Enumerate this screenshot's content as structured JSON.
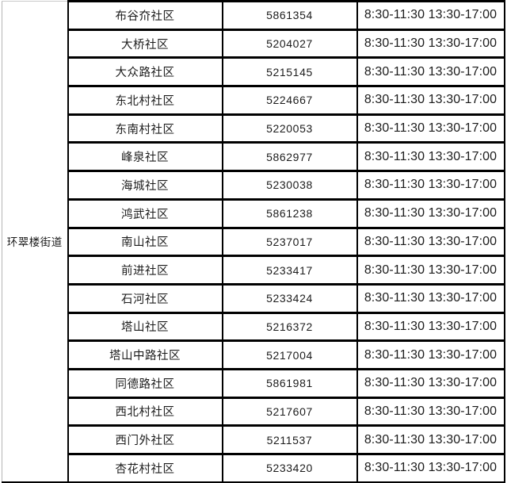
{
  "page": {
    "background_color": "#ffffff",
    "border_color": "#000000",
    "outer_light_border_color": "#b5b5b5",
    "text_color": "#1c1c1c"
  },
  "table": {
    "street_label": "环翠楼街道",
    "rows": [
      {
        "community": "布谷夼社区",
        "phone": "5861354",
        "hours": "8:30-11:30 13:30-17:00"
      },
      {
        "community": "大桥社区",
        "phone": "5204027",
        "hours": "8:30-11:30 13:30-17:00"
      },
      {
        "community": "大众路社区",
        "phone": "5215145",
        "hours": "8:30-11:30 13:30-17:00"
      },
      {
        "community": "东北村社区",
        "phone": "5224667",
        "hours": "8:30-11:30 13:30-17:00"
      },
      {
        "community": "东南村社区",
        "phone": "5220053",
        "hours": "8:30-11:30 13:30-17:00"
      },
      {
        "community": "峰泉社区",
        "phone": "5862977",
        "hours": "8:30-11:30 13:30-17:00"
      },
      {
        "community": "海城社区",
        "phone": "5230038",
        "hours": "8:30-11:30 13:30-17:00"
      },
      {
        "community": "鸿武社区",
        "phone": "5861238",
        "hours": "8:30-11:30 13:30-17:00"
      },
      {
        "community": "南山社区",
        "phone": "5237017",
        "hours": "8:30-11:30 13:30-17:00"
      },
      {
        "community": "前进社区",
        "phone": "5233417",
        "hours": "8:30-11:30 13:30-17:00"
      },
      {
        "community": "石河社区",
        "phone": "5233424",
        "hours": "8:30-11:30 13:30-17:00"
      },
      {
        "community": "塔山社区",
        "phone": "5216372",
        "hours": "8:30-11:30 13:30-17:00"
      },
      {
        "community": "塔山中路社区",
        "phone": "5217004",
        "hours": "8:30-11:30 13:30-17:00"
      },
      {
        "community": "同德路社区",
        "phone": "5861981",
        "hours": "8:30-11:30 13:30-17:00"
      },
      {
        "community": "西北村社区",
        "phone": "5217607",
        "hours": "8:30-11:30 13:30-17:00"
      },
      {
        "community": "西门外社区",
        "phone": "5211537",
        "hours": "8:30-11:30 13:30-17:00"
      },
      {
        "community": "杏花村社区",
        "phone": "5233420",
        "hours": "8:30-11:30 13:30-17:00"
      }
    ]
  }
}
